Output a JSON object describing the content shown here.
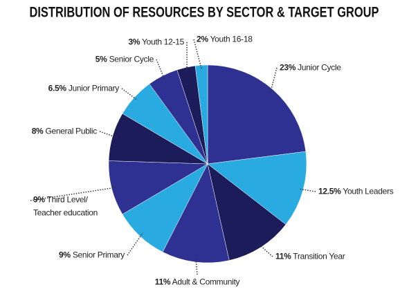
{
  "chart_data": {
    "type": "pie",
    "title": "DISTRIBUTION OF RESOURCES BY SECTOR & TARGET GROUP",
    "categories": [
      "Junior Cycle",
      "Youth Leaders",
      "Transition Year",
      "Adult & Community",
      "Senior Primary",
      "Third Level/ Teacher education",
      "General Public",
      "Junior Primary",
      "Senior Cycle",
      "Youth 12-15",
      "Youth 16-18"
    ],
    "values": [
      23,
      12.5,
      11,
      11,
      9,
      9,
      8,
      6.5,
      5,
      3,
      2
    ],
    "value_labels": [
      "23%",
      "12.5%",
      "11%",
      "11%",
      "9%",
      "9%",
      "8%",
      "6.5%",
      "5%",
      "3%",
      "2%"
    ],
    "colors": [
      "#2e3192",
      "#29abe2",
      "#1c1c5a",
      "#2e3192",
      "#29abe2",
      "#2e3192",
      "#1c1c5a",
      "#29abe2",
      "#2e3192",
      "#1c1c5a",
      "#29abe2"
    ]
  }
}
